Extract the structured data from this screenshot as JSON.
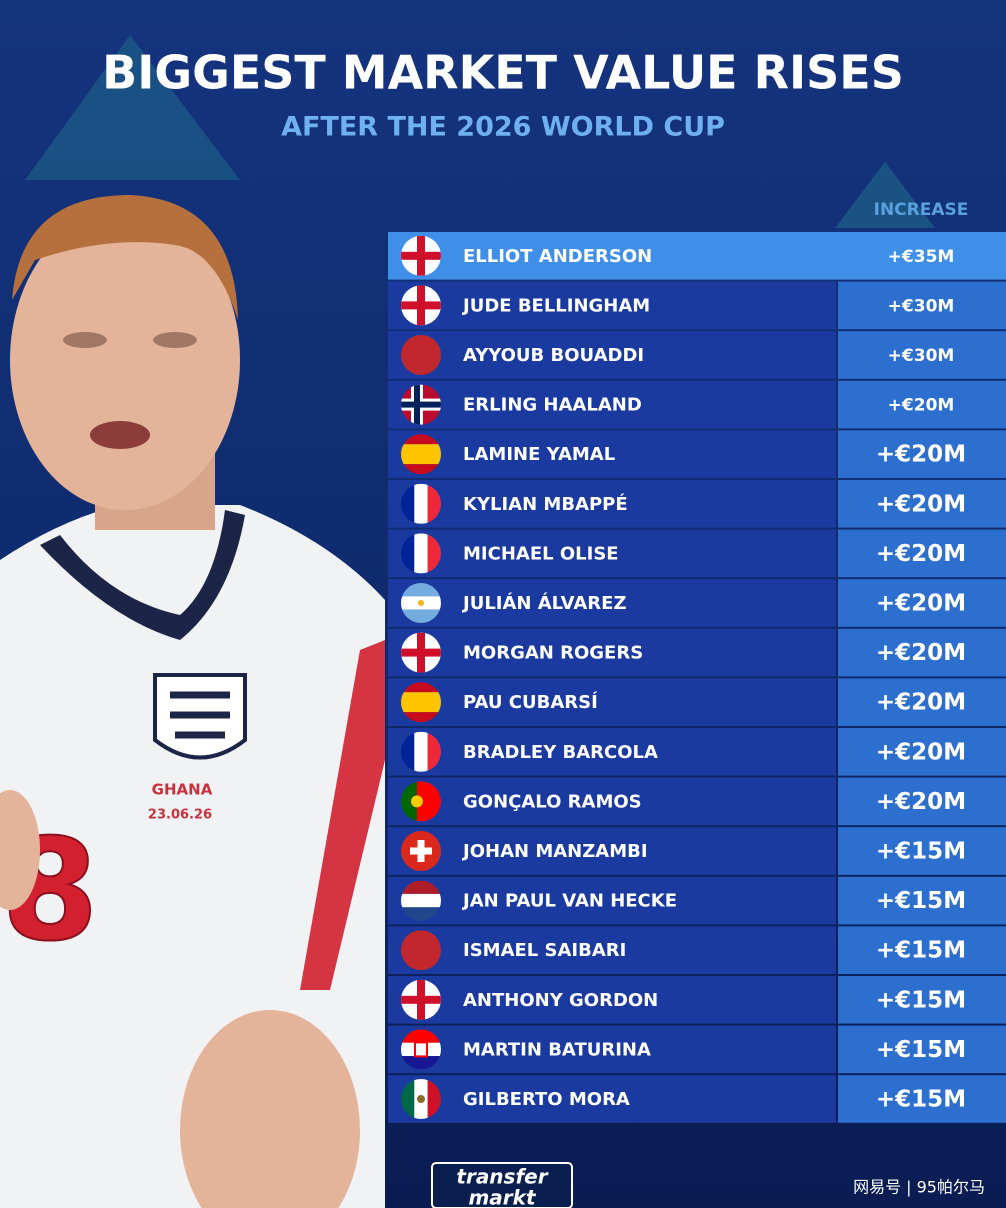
{
  "header": {
    "title": "BIGGEST MARKET VALUE RISES",
    "subtitle": "AFTER THE 2026 WORLD CUP"
  },
  "table": {
    "column_header": "INCREASE",
    "rows": [
      [
        "ELLIOT ANDERSON",
        "+€35M"
      ],
      [
        "JUDE BELLINGHAM",
        "+€30M"
      ],
      [
        "AYYOUB BOUADDI",
        "+€30M"
      ],
      [
        "ERLING HAALAND",
        "+€20M"
      ],
      [
        "LAMINE YAMAL",
        "+€20M"
      ],
      [
        "KYLIAN MBAPPÉ",
        "+€20M"
      ],
      [
        "MICHAEL OLISE",
        "+€20M"
      ],
      [
        "JULIÁN ÁLVAREZ",
        "+€20M"
      ],
      [
        "MORGAN ROGERS",
        "+€20M"
      ],
      [
        "PAU CUBARSÍ",
        "+€20M"
      ],
      [
        "BRADLEY BARCOLA",
        "+€20M"
      ],
      [
        "GONÇALO RAMOS",
        "+€20M"
      ],
      [
        "JOHAN MANZAMBI",
        "+€15M"
      ],
      [
        "JAN PAUL VAN HECKE",
        "+€15M"
      ],
      [
        "ISMAEL SAIBARI",
        "+€15M"
      ],
      [
        "ANTHONY GORDON",
        "+€15M"
      ],
      [
        "MARTIN BATURINA",
        "+€15M"
      ],
      [
        "GILBERTO MORA",
        "+€15M"
      ]
    ]
  },
  "shirt": {
    "badge_text": "GHANA",
    "date": "23.06.26",
    "number": "8"
  },
  "footer": {
    "logo_top": "transfer",
    "logo_bottom": "markt",
    "watermark": "网易号 | 95帕尔马"
  }
}
